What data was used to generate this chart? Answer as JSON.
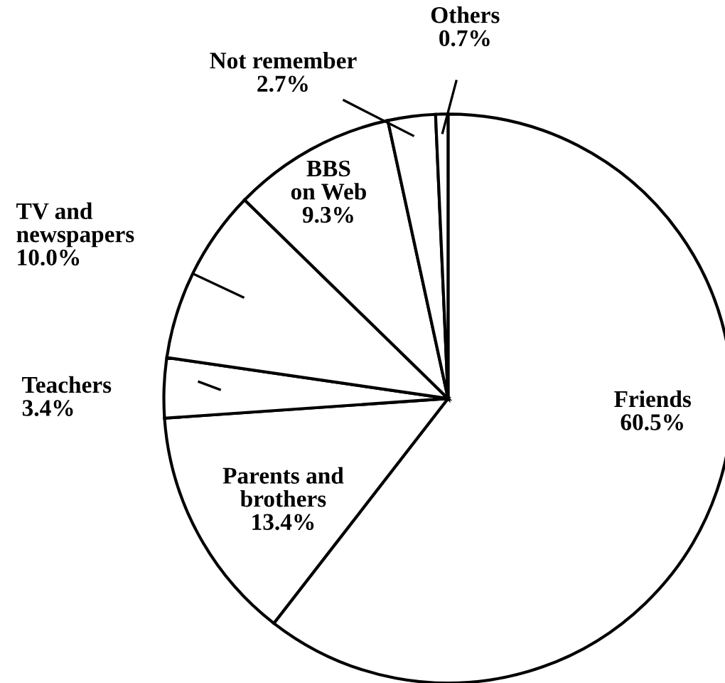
{
  "chart_data": {
    "type": "pie",
    "categories": [
      "Friends",
      "Parents and\nbrothers",
      "Teachers",
      "TV and\nnewspapers",
      "BBS\non Web",
      "Not remember",
      "Others"
    ],
    "values": [
      60.5,
      13.4,
      3.4,
      10.0,
      9.3,
      2.7,
      0.7
    ],
    "colors": [
      "#ffffff",
      "#ffffff",
      "#ffffff",
      "#ffffff",
      "#ffffff",
      "#ffffff",
      "#ffffff"
    ],
    "value_labels": [
      "60.5%",
      "13.4%",
      "3.4%",
      "10.0%",
      "9.3%",
      "2.7%",
      "0.7%"
    ]
  }
}
